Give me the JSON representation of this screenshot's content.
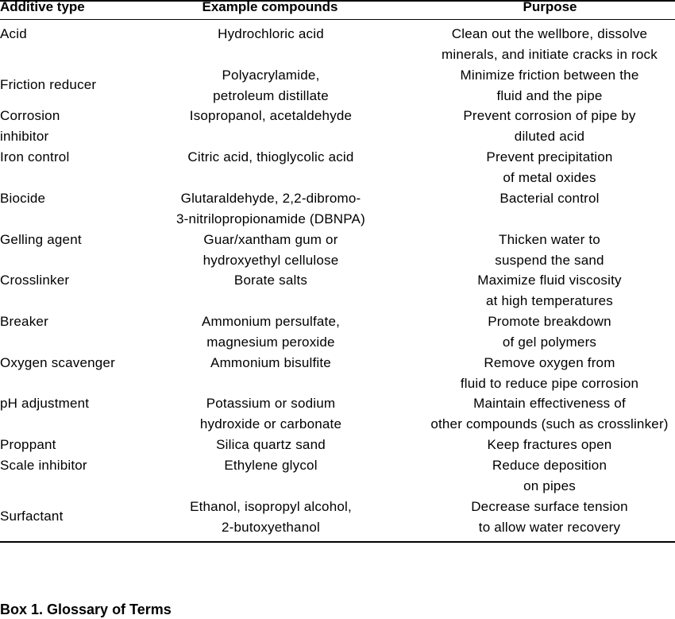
{
  "table": {
    "headers": [
      "Additive type",
      "Example compounds",
      "Purpose"
    ],
    "rows": [
      {
        "type": "Acid",
        "examples": "Hydrochloric acid",
        "purpose": "Clean out the wellbore, dissolve\nminerals, and initiate cracks in rock"
      },
      {
        "type": "Friction reducer",
        "examples": "Polyacrylamide,\npetroleum distillate",
        "purpose": "Minimize friction between the\nfluid and the pipe"
      },
      {
        "type": "Corrosion\n   inhibitor",
        "examples": "Isopropanol, acetaldehyde",
        "purpose": "Prevent corrosion of pipe by\ndiluted acid"
      },
      {
        "type": "Iron control",
        "examples": "Citric acid, thioglycolic acid",
        "purpose": "Prevent precipitation\nof metal oxides"
      },
      {
        "type": "Biocide",
        "examples": "Glutaraldehyde, 2,2-dibromo-\n3-nitrilopropionamide (DBNPA)",
        "purpose": "Bacterial control"
      },
      {
        "type": "Gelling agent",
        "examples": "Guar/xantham gum or\nhydroxyethyl cellulose",
        "purpose": "Thicken water to\nsuspend the sand"
      },
      {
        "type": "Crosslinker",
        "examples": "Borate salts",
        "purpose": "Maximize fluid viscosity\nat high temperatures"
      },
      {
        "type": "Breaker",
        "examples": "Ammonium persulfate,\nmagnesium peroxide",
        "purpose": "Promote breakdown\nof gel polymers"
      },
      {
        "type": "Oxygen scavenger",
        "examples": "Ammonium bisulfite",
        "purpose": "Remove oxygen from\nfluid to reduce pipe corrosion"
      },
      {
        "type": "pH adjustment",
        "examples": "Potassium or sodium\nhydroxide or carbonate",
        "purpose": "Maintain effectiveness of\nother compounds (such as crosslinker)"
      },
      {
        "type": "Proppant",
        "examples": "Silica quartz sand",
        "purpose": "Keep fractures open"
      },
      {
        "type": "Scale inhibitor",
        "examples": "Ethylene glycol",
        "purpose": "Reduce deposition\non pipes"
      },
      {
        "type": "Surfactant",
        "examples": "Ethanol, isopropyl alcohol,\n2-butoxyethanol",
        "purpose": "Decrease surface tension\nto allow water recovery"
      }
    ]
  },
  "box_title": "Box 1. Glossary of Terms"
}
